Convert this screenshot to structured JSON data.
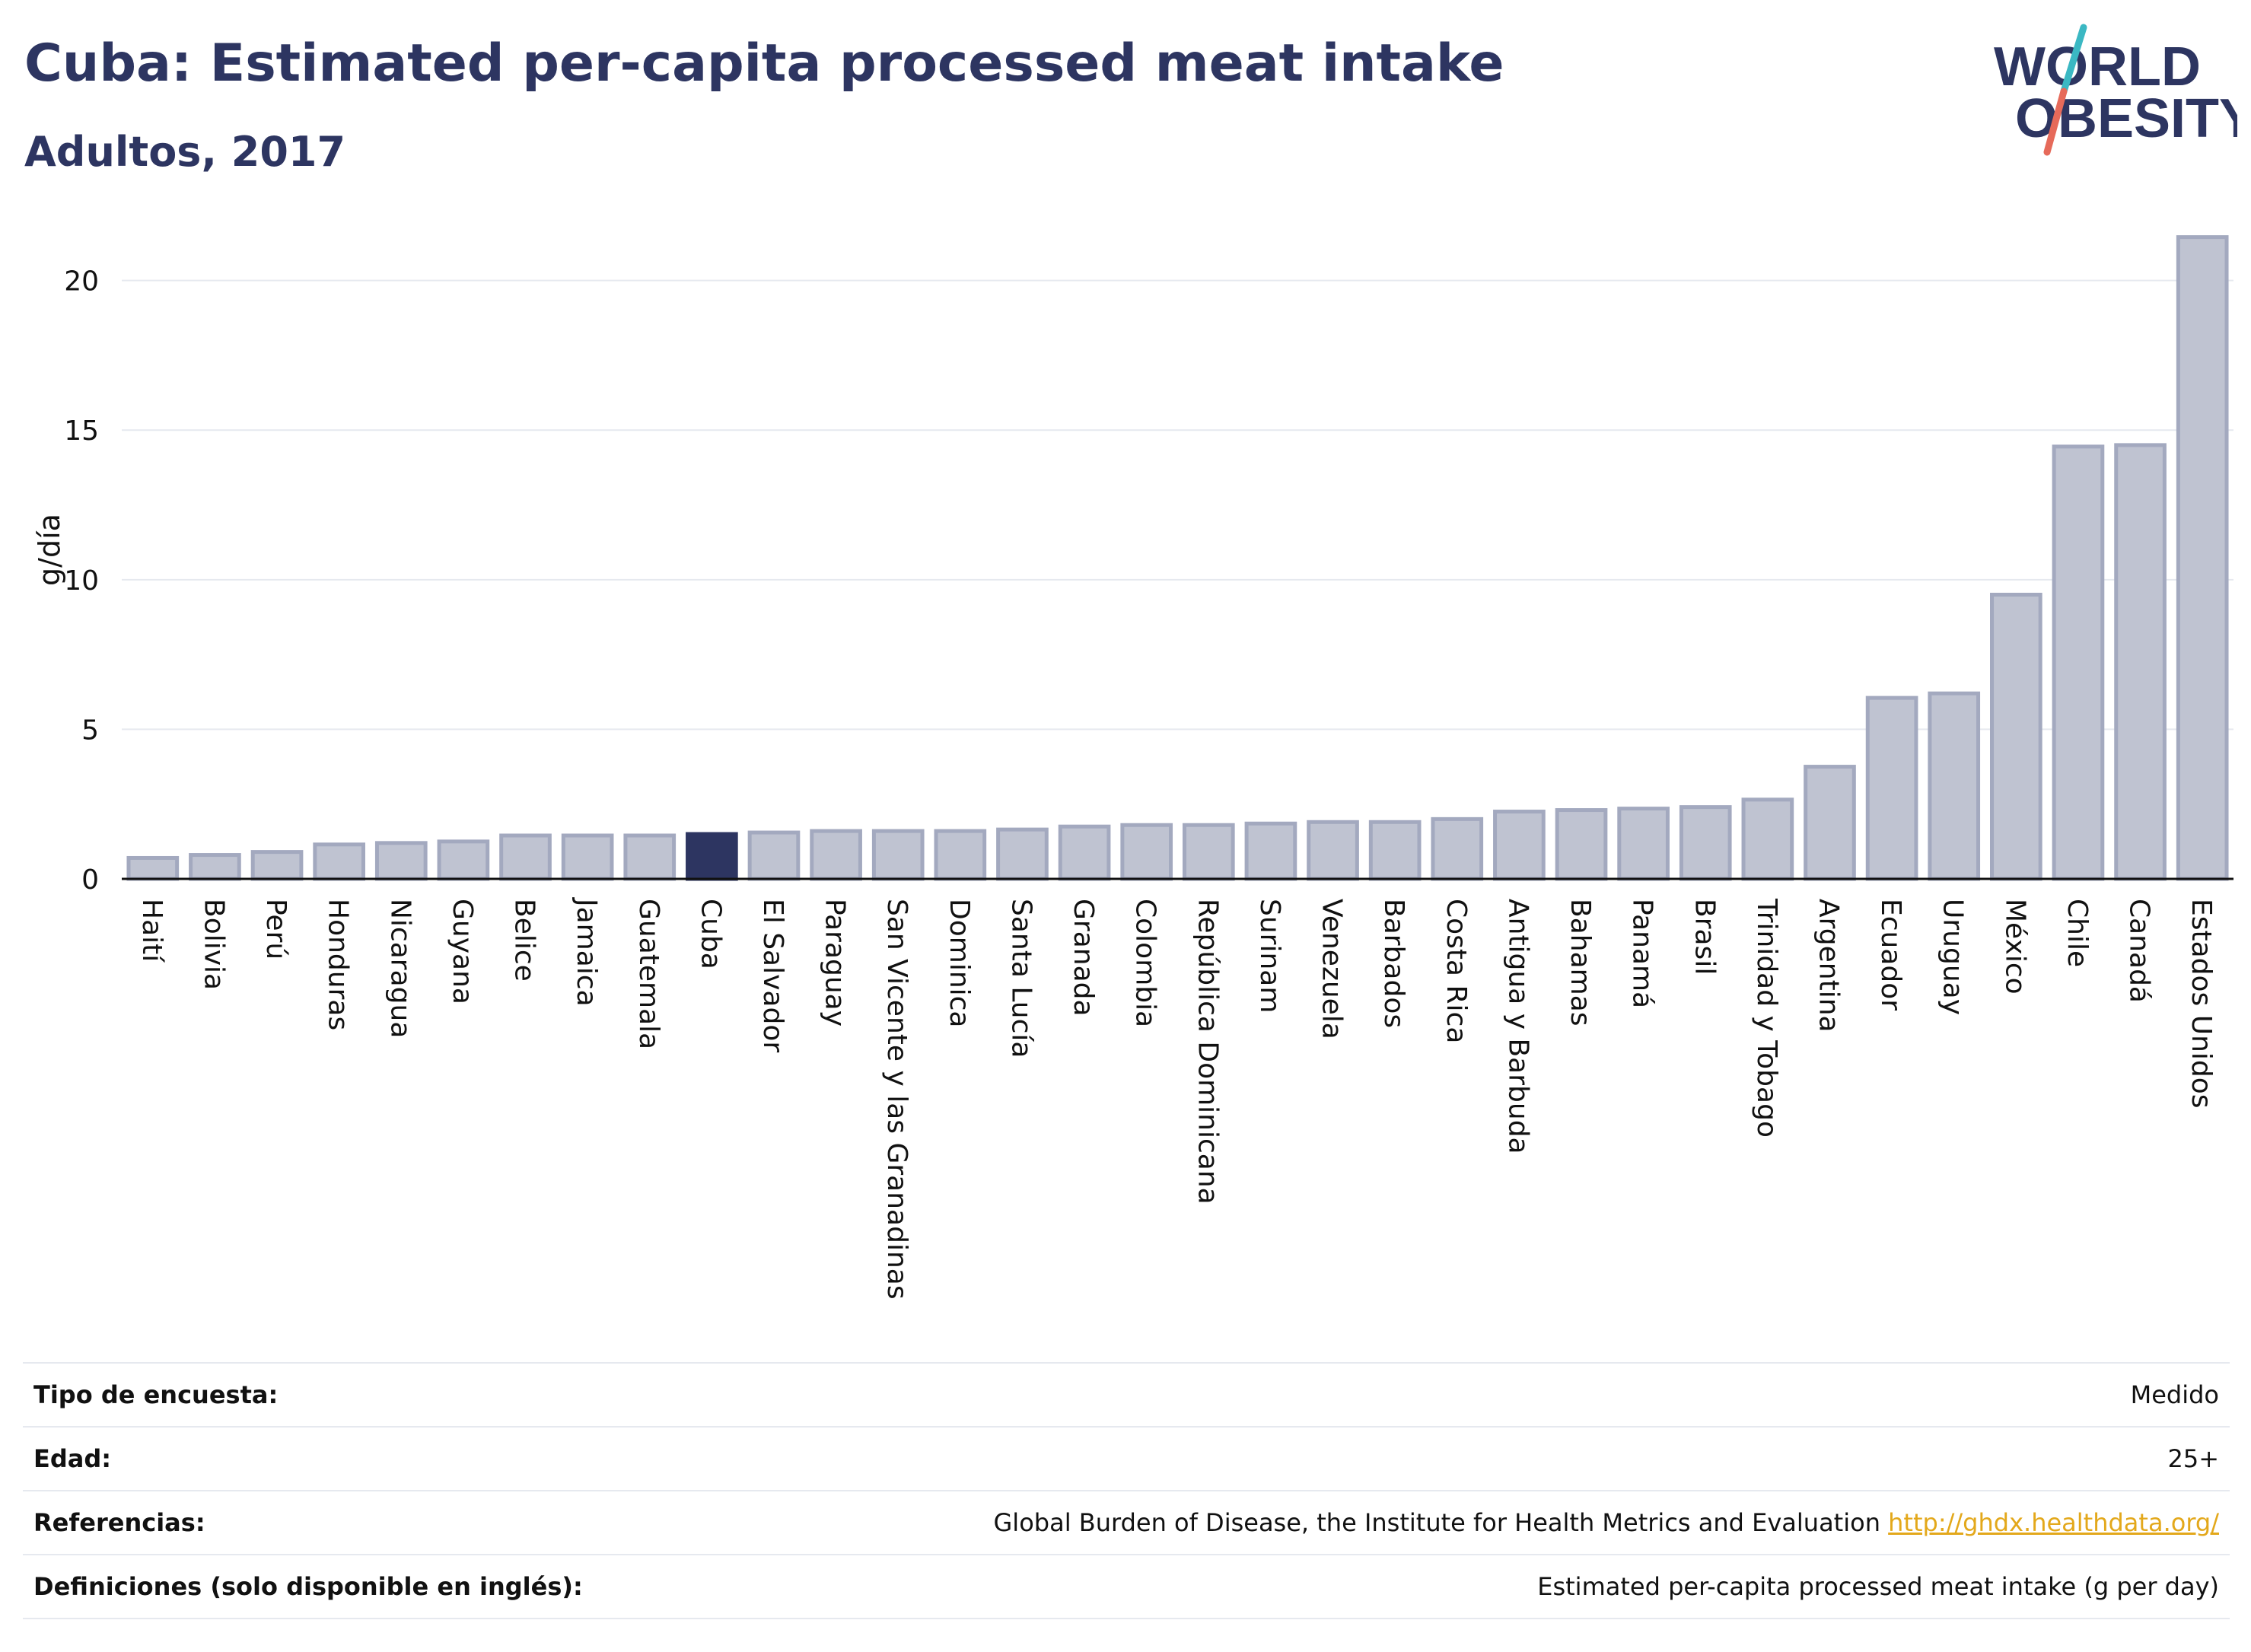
{
  "header": {
    "title": "Cuba: Estimated per-capita processed meat intake",
    "subtitle": "Adultos, 2017",
    "logo_line1": "WORLD",
    "logo_line2": "OBESITY"
  },
  "colors": {
    "bar_default": "#bfc3d1",
    "bar_default_stroke": "#a3a9bf",
    "bar_highlight": "#2d3561",
    "title": "#2d3561",
    "grid": "#e6e9ef",
    "link": "#e3a81b",
    "logo_teal": "#3bb8c3",
    "logo_red": "#e66a5a"
  },
  "chart_data": {
    "type": "bar",
    "ylabel": "g/día",
    "ylim": [
      0,
      22
    ],
    "yticks": [
      0,
      5,
      10,
      15,
      20
    ],
    "grid": true,
    "highlight": "Cuba",
    "categories": [
      "Haití",
      "Bolivia",
      "Perú",
      "Honduras",
      "Nicaragua",
      "Guyana",
      "Belice",
      "Jamaica",
      "Guatemala",
      "Cuba",
      "El Salvador",
      "Paraguay",
      "San Vicente y las Granadinas",
      "Dominica",
      "Santa Lucía",
      "Granada",
      "Colombia",
      "República Dominicana",
      "Surinam",
      "Venezuela",
      "Barbados",
      "Costa Rica",
      "Antigua y Barbuda",
      "Bahamas",
      "Panamá",
      "Brasil",
      "Trinidad y Tobago",
      "Argentina",
      "Ecuador",
      "Uruguay",
      "México",
      "Chile",
      "Canadá",
      "Estados Unidos"
    ],
    "values": [
      0.7,
      0.8,
      0.9,
      1.15,
      1.2,
      1.25,
      1.45,
      1.45,
      1.45,
      1.5,
      1.55,
      1.6,
      1.6,
      1.6,
      1.65,
      1.75,
      1.8,
      1.8,
      1.85,
      1.9,
      1.9,
      2.0,
      2.25,
      2.3,
      2.35,
      2.4,
      2.65,
      3.75,
      6.05,
      6.2,
      9.5,
      14.45,
      14.5,
      21.45
    ]
  },
  "info": {
    "rows": [
      {
        "label": "Tipo de encuesta:",
        "value": "Medido"
      },
      {
        "label": "Edad:",
        "value": "25+"
      },
      {
        "label": "Referencias:",
        "value": "Global Burden of Disease, the Institute for Health Metrics and Evaluation",
        "link": "http://ghdx.healthdata.org/"
      },
      {
        "label": "Definiciones (solo disponible en inglés):",
        "value": "Estimated per-capita processed meat intake (g per day)"
      }
    ]
  }
}
